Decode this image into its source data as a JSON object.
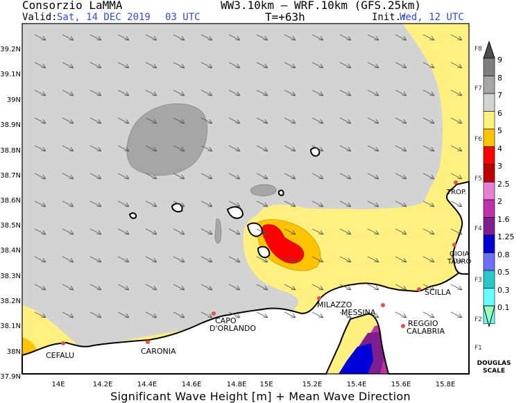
{
  "header": {
    "org": "Consorzio LaMMA",
    "model": "WW3.10km — WRF.10km (GFS.25km)",
    "valid_label": "Valid:",
    "valid_value": "Sat, 14 DEC 2019",
    "valid_hour": "03 UTC",
    "lead_time": "T=+63h",
    "init_label": "Init.:",
    "init_value": "Wed, 12 UTC"
  },
  "axes": {
    "lat_ticks": [
      "39.2N",
      "39.1N",
      "39N",
      "38.9N",
      "38.8N",
      "38.7N",
      "38.6N",
      "38.5N",
      "38.4N",
      "38.3N",
      "38.2N",
      "38.1N",
      "38N",
      "37.9N"
    ],
    "lon_ticks": [
      "14E",
      "14.2E",
      "14.4E",
      "14.6E",
      "14.8E",
      "15E",
      "15.2E",
      "15.4E",
      "15.6E",
      "15.8E"
    ]
  },
  "places": {
    "cefalu": "CEFALU",
    "caronia": "CARONIA",
    "capo_1": "CAPO",
    "capo_2": "D'ORLANDO",
    "milazzo": "MILAZZO",
    "messina": "MESSINA",
    "scilla": "SCILLA",
    "reggio_1": "REGGIO",
    "reggio_2": "CALABRIA",
    "gioia_1": "GIOIA",
    "gioia_2": "TAURO",
    "tropea": "TROP."
  },
  "footer": "Significant Wave Height [m] + Mean Wave Direction",
  "legend": {
    "values": [
      "9",
      "8",
      "7",
      "6",
      "5",
      "4",
      "3",
      "2.5",
      "2",
      "1.6",
      "1.25",
      "0.8",
      "0.5",
      "0.3",
      "0.1"
    ],
    "force_labels": [
      "F8",
      "F7",
      "F6",
      "F5",
      "F4",
      "F3",
      "F2",
      "F1"
    ],
    "scale_1": "DOUGLAS",
    "scale_2": "SCALE",
    "colors": [
      "#7f7f7f",
      "#a6a6a6",
      "#d3d3d3",
      "#fff07f",
      "#ffc300",
      "#ff0000",
      "#c00000",
      "#e87fd6",
      "#c030a8",
      "#7f1f8f",
      "#0000d8",
      "#6f6fff",
      "#26c8c8",
      "#66ffff",
      "#9fffbf"
    ]
  }
}
